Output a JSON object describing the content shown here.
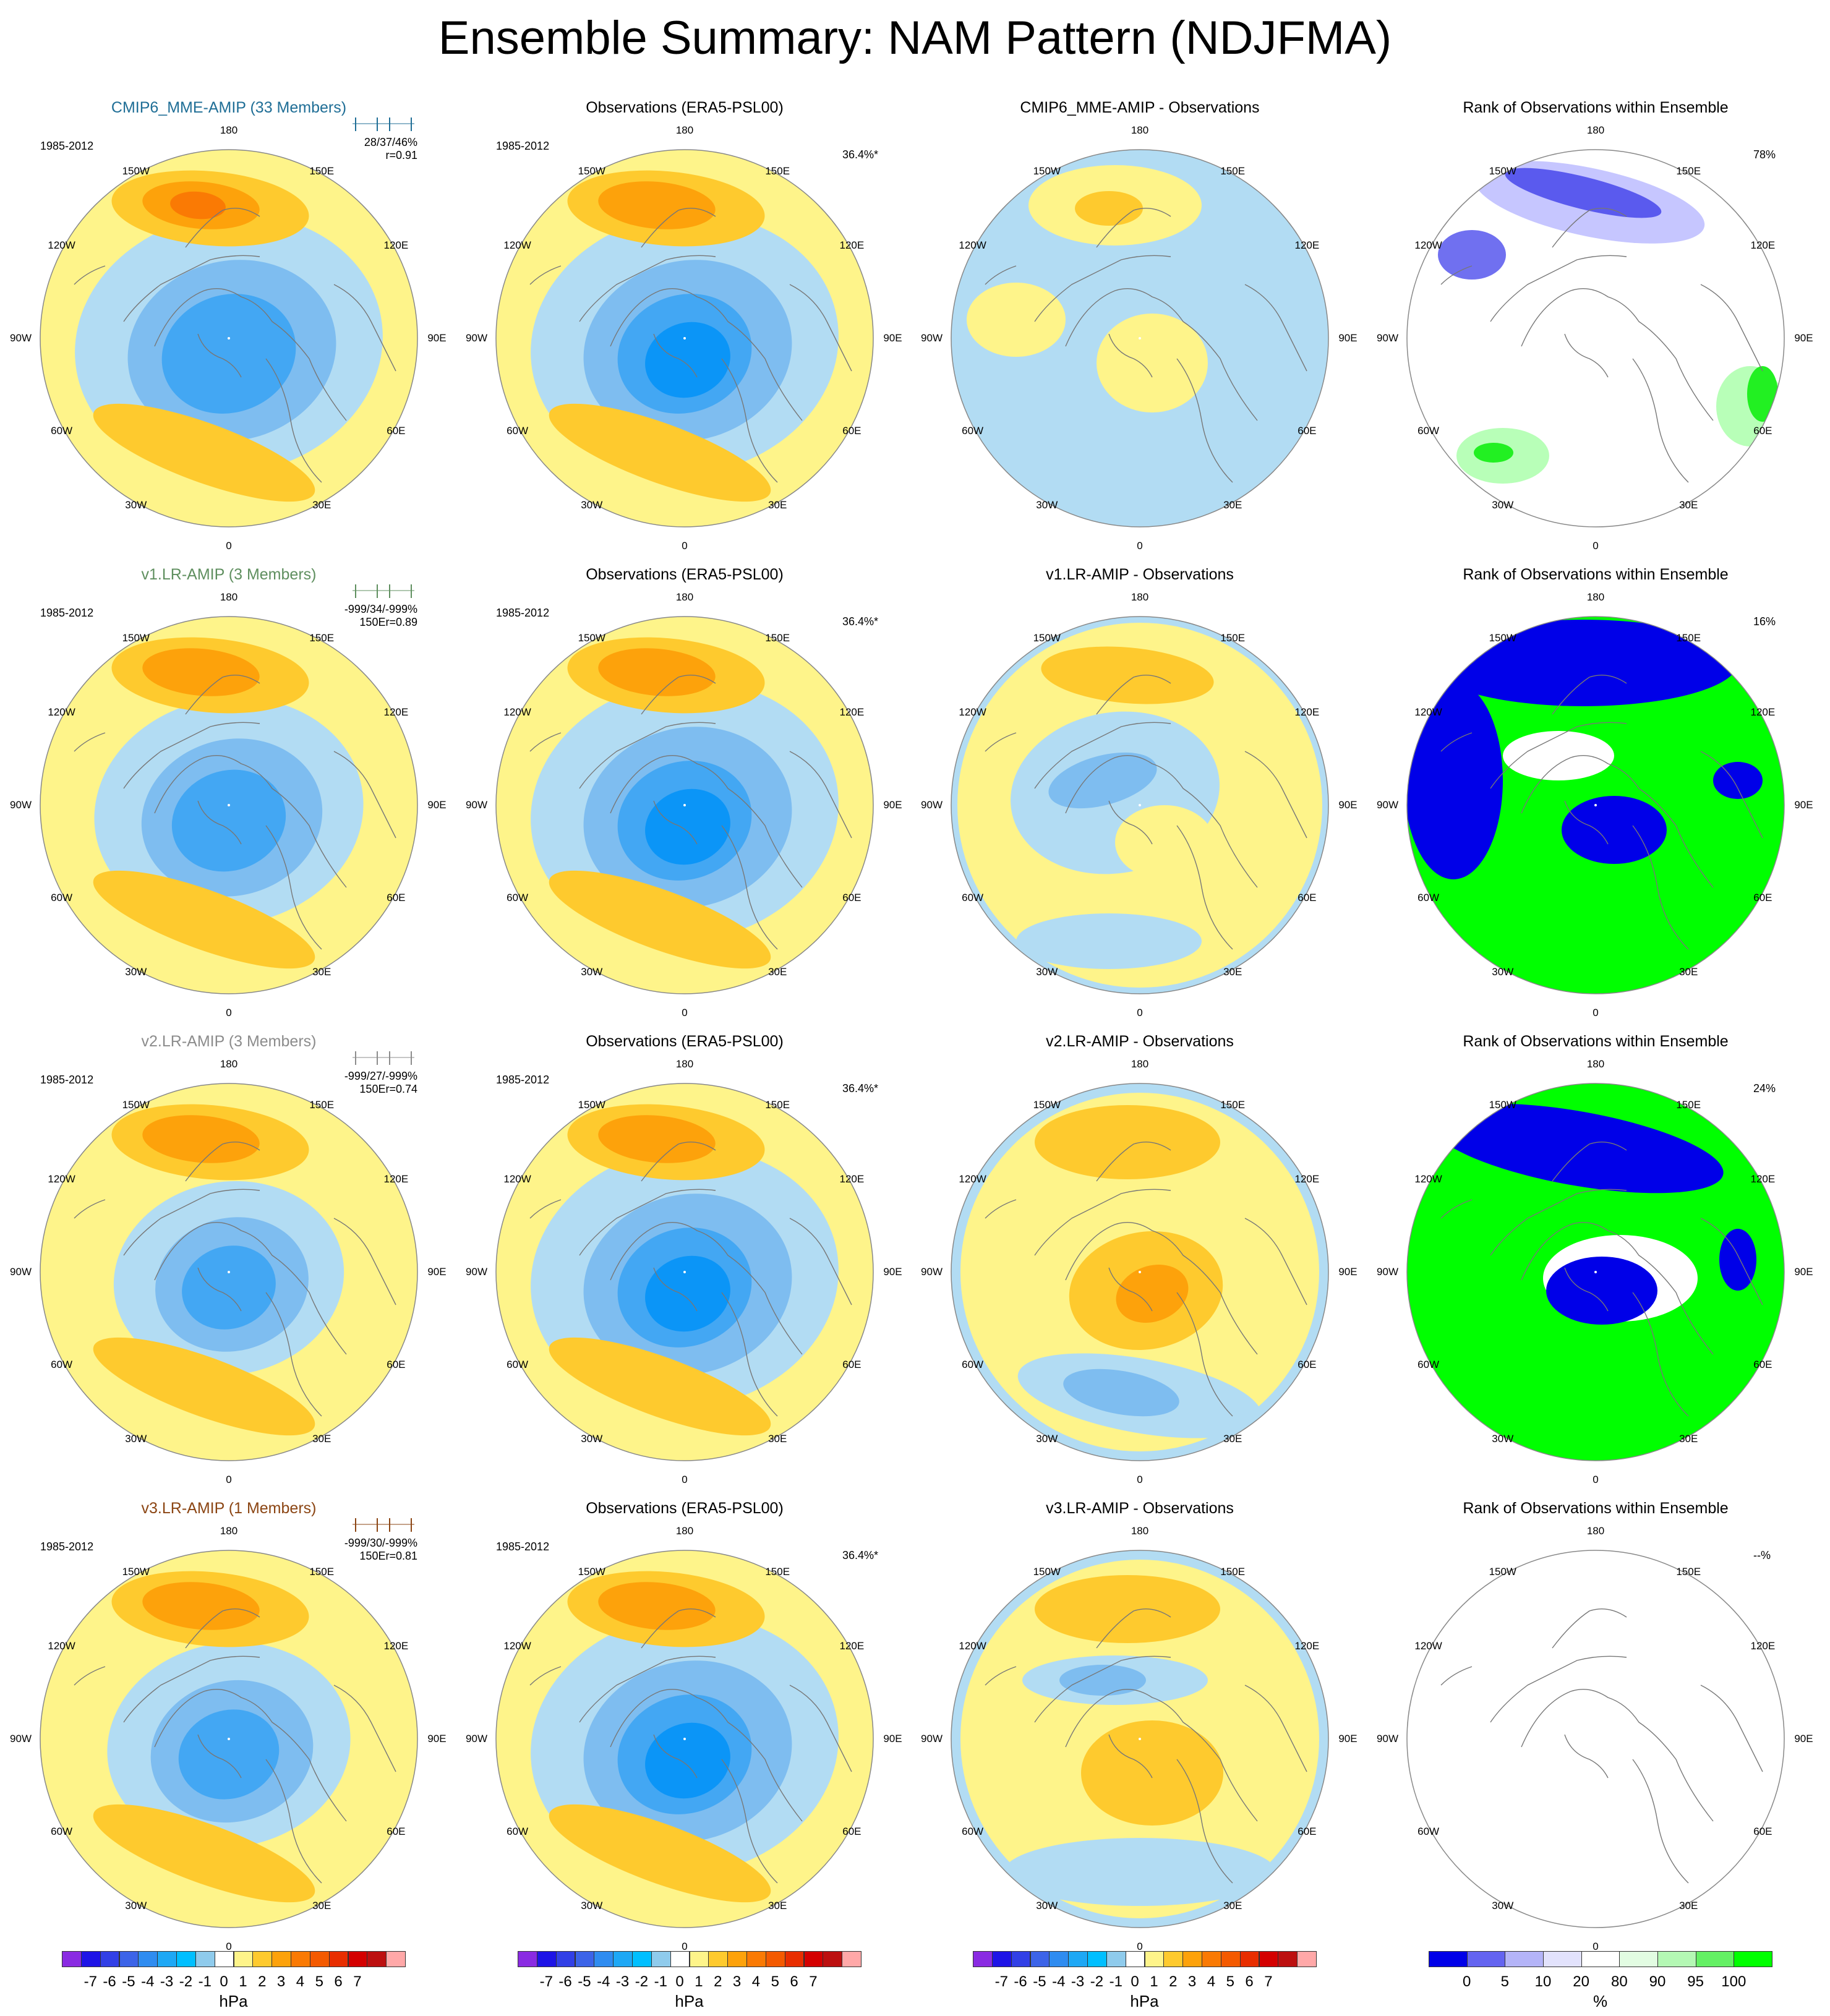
{
  "title": "Ensemble Summary: NAM Pattern (NDJFMA)",
  "colors": {
    "pos1": "#FEF48A",
    "pos2": "#FECA2E",
    "pos3": "#FDA20B",
    "pos4": "#FA7A04",
    "neg1": "#B2DCF3",
    "neg2": "#7EBDF0",
    "neg3": "#43A7F3",
    "neg4": "#0B95F7",
    "rank_blue": "#0000E8",
    "rank_green": "#00FF00",
    "rank_light_blue": "#C6C6FF",
    "rank_light_green": "#B8FFB8",
    "coast": "#777777"
  },
  "lon_labels": [
    "180",
    "150W",
    "150E",
    "120W",
    "120E",
    "90W",
    "90E",
    "60W",
    "60E",
    "30W",
    "30E",
    "0"
  ],
  "rows": [
    {
      "model": {
        "title": "CMIP6_MME-AMIP (33 Members)",
        "title_color": "#1F6E96",
        "period": "1985-2012",
        "stats_line1": "28/37/46%",
        "stats_line2": "r=0.91",
        "strength": 1.0
      },
      "obs": {
        "title": "Observations (ERA5-PSL00)",
        "period": "1985-2012",
        "percent": "36.4%*"
      },
      "diff": {
        "title": "CMIP6_MME-AMIP - Observations",
        "mode": 1
      },
      "rank": {
        "title": "Rank of Observations within Ensemble",
        "percent": "78%",
        "mode": "light"
      }
    },
    {
      "model": {
        "title": "v1.LR-AMIP (3 Members)",
        "title_color": "#5F8F5F",
        "period": "1985-2012",
        "stats_line1": "-999/34/-999%",
        "stats_line2": "150Er=0.89",
        "strength": 0.85
      },
      "obs": {
        "title": "Observations (ERA5-PSL00)",
        "period": "1985-2012",
        "percent": "36.4%*"
      },
      "diff": {
        "title": "v1.LR-AMIP - Observations",
        "mode": 2
      },
      "rank": {
        "title": "Rank of Observations within Ensemble",
        "percent": "16%",
        "mode": "solid1"
      }
    },
    {
      "model": {
        "title": "v2.LR-AMIP (3 Members)",
        "title_color": "#8C8C8C",
        "period": "1985-2012",
        "stats_line1": "-999/27/-999%",
        "stats_line2": "150Er=0.74",
        "strength": 0.7
      },
      "obs": {
        "title": "Observations (ERA5-PSL00)",
        "period": "1985-2012",
        "percent": "36.4%*"
      },
      "diff": {
        "title": "v2.LR-AMIP - Observations",
        "mode": 3
      },
      "rank": {
        "title": "Rank of Observations within Ensemble",
        "percent": "24%",
        "mode": "solid2"
      }
    },
    {
      "model": {
        "title": "v3.LR-AMIP (1 Members)",
        "title_color": "#8B4513",
        "period": "1985-2012",
        "stats_line1": "-999/30/-999%",
        "stats_line2": "150Er=0.81",
        "strength": 0.75
      },
      "obs": {
        "title": "Observations (ERA5-PSL00)",
        "period": "1985-2012",
        "percent": "36.4%*"
      },
      "diff": {
        "title": "v3.LR-AMIP - Observations",
        "mode": 4
      },
      "rank": {
        "title": "Rank of Observations within Ensemble",
        "percent": "--%",
        "mode": "blank"
      }
    }
  ],
  "colorbars": {
    "hpa": {
      "ticks": [
        "-7",
        "-6",
        "-5",
        "-4",
        "-3",
        "-2",
        "-1",
        "0",
        "1",
        "2",
        "3",
        "4",
        "5",
        "6",
        "7"
      ],
      "colors": [
        "#8A2BE2",
        "#1E14E6",
        "#3240E6",
        "#3C64E8",
        "#2F8CF0",
        "#1EA8F5",
        "#00BFFF",
        "#8FCBEC",
        "#FFFFFF",
        "#FEF48A",
        "#FECA2E",
        "#FDA20B",
        "#FA7A04",
        "#F45A00",
        "#E82E00",
        "#D40000",
        "#BC1010",
        "#FFA8A8"
      ],
      "unit": "hPa"
    },
    "rank": {
      "ticks": [
        "0",
        "5",
        "10",
        "20",
        "80",
        "90",
        "95",
        "100"
      ],
      "colors": [
        "#0000E8",
        "#6464F0",
        "#B4B4F8",
        "#E2E2FC",
        "#FFFFFF",
        "#E2FCE2",
        "#B4F8B4",
        "#64F064",
        "#00FF00"
      ],
      "unit": "%"
    }
  },
  "chart_data": {
    "type": "heatmap",
    "title": "Ensemble Summary: NAM Pattern (NDJFMA)",
    "projection": "north polar stereographic",
    "panels_per_row": [
      "model NAM pattern",
      "Observations (ERA5-PSL00)",
      "model - observations",
      "rank of observations within ensemble"
    ],
    "colorbar_levels_hPa": [
      -7,
      -6,
      -5,
      -4,
      -3,
      -2,
      -1,
      0,
      1,
      2,
      3,
      4,
      5,
      6,
      7
    ],
    "colorbar_levels_rank_pct": [
      0,
      5,
      10,
      20,
      80,
      90,
      95,
      100
    ],
    "pattern_correlation": {
      "CMIP6_MME-AMIP": 0.91,
      "v1.LR-AMIP": 0.89,
      "v2.LR-AMIP": 0.74,
      "v3.LR-AMIP": 0.81
    },
    "explained_variance_pct": {
      "CMIP6_MME-AMIP": [
        28,
        37,
        46
      ],
      "v1.LR-AMIP": [
        -999,
        34,
        -999
      ],
      "v2.LR-AMIP": [
        -999,
        27,
        -999
      ],
      "v3.LR-AMIP": [
        -999,
        30,
        -999
      ],
      "ERA5-PSL00": 36.4
    },
    "rank_pct": {
      "CMIP6_MME-AMIP": "78%",
      "v1.LR-AMIP": "16%",
      "v2.LR-AMIP": "24%",
      "v3.LR-AMIP": "--%"
    }
  }
}
